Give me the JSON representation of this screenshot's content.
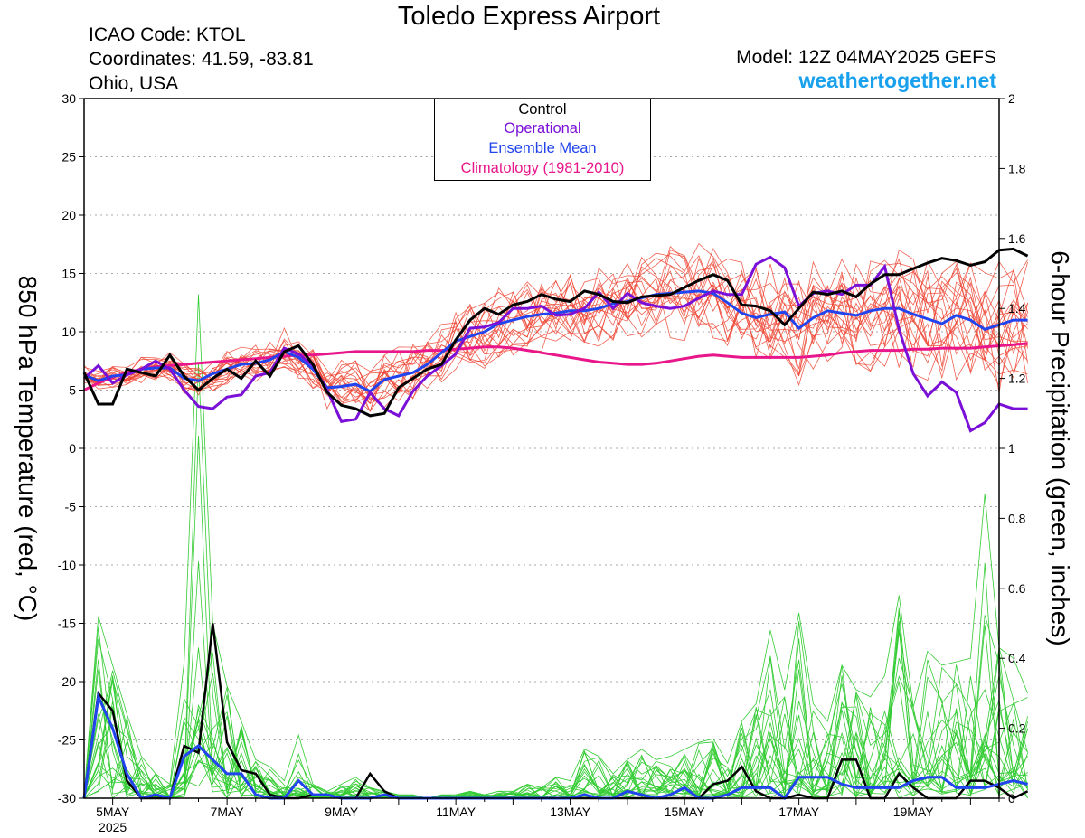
{
  "header": {
    "title": "Toledo Express Airport",
    "icao": "ICAO Code: KTOL",
    "coordinates": "Coordinates: 41.59, -83.81",
    "region": "Ohio, USA",
    "model": "Model: 12Z 04MAY2025 GEFS",
    "brand": "weathertogether.net"
  },
  "colors": {
    "control": "#000000",
    "operational": "#7a10d8",
    "ensemble_mean": "#2244ee",
    "climatology": "#e8168a",
    "temp_members": "#ee4433",
    "precip_members": "#33cc33",
    "brand": "#1aa1ee"
  },
  "chart_data": {
    "type": "line",
    "xlabel": "",
    "x_ticks": [
      "5MAY",
      "7MAY",
      "9MAY",
      "11MAY",
      "13MAY",
      "15MAY",
      "17MAY",
      "19MAY"
    ],
    "x_year_label": "2025",
    "x_range_days": [
      4.5,
      20.5
    ],
    "left_axis": {
      "label": "850 hPa Temperature (red, °C)",
      "ylim": [
        -30,
        30
      ],
      "ticks": [
        30,
        25,
        20,
        15,
        10,
        5,
        0,
        -5,
        -10,
        -15,
        -20,
        -25,
        -30
      ]
    },
    "right_axis": {
      "label": "6-hour Precipitation (green, inches)",
      "ylim": [
        0,
        2
      ],
      "ticks": [
        "2",
        "1.8",
        "1.6",
        "1.4",
        "1.2",
        "1",
        "0.8",
        "0.6",
        "0.4",
        "0.2",
        "0"
      ]
    },
    "grid": true,
    "legend": {
      "placement": "top-center",
      "entries": [
        "Control",
        "Operational",
        "Ensemble Mean",
        "Climatology (1981-2010)"
      ]
    },
    "time_step_hours": 6,
    "temperature": {
      "control": [
        6.5,
        3.8,
        3.8,
        6.8,
        6.5,
        6.2,
        8.0,
        6.2,
        5.0,
        6.0,
        6.8,
        6.0,
        7.5,
        6.2,
        8.3,
        8.8,
        7.2,
        4.8,
        3.7,
        3.4,
        2.8,
        3.0,
        5.2,
        6.0,
        6.8,
        7.2,
        9.3,
        11.0,
        12.0,
        11.5,
        12.3,
        12.6,
        13.2,
        12.8,
        12.6,
        13.5,
        13.2,
        12.6,
        12.5,
        13.0,
        13.1,
        13.2,
        13.8,
        14.4,
        14.9,
        14.4,
        12.3,
        12.2,
        11.8,
        10.6,
        12.0,
        13.4,
        13.2,
        13.5,
        13.0,
        14.1,
        14.9,
        14.9,
        15.4,
        15.9,
        16.3,
        16.1,
        15.7,
        16.0,
        17.0,
        17.1,
        16.5
      ],
      "operational": [
        6.0,
        7.1,
        5.6,
        6.3,
        6.8,
        7.5,
        6.8,
        5.0,
        3.6,
        3.4,
        4.4,
        4.6,
        6.2,
        6.5,
        8.6,
        8.1,
        7.1,
        5.0,
        2.3,
        2.5,
        4.8,
        3.4,
        2.8,
        4.9,
        6.2,
        7.1,
        8.1,
        10.3,
        10.4,
        10.8,
        12.0,
        12.0,
        12.2,
        11.4,
        11.5,
        12.0,
        13.4,
        12.0,
        13.3,
        12.5,
        12.2,
        12.0,
        12.2,
        12.9,
        13.5,
        13.2,
        13.2,
        15.8,
        16.4,
        15.5,
        12.2,
        13.3,
        13.5,
        13.2,
        14.0,
        14.0,
        15.6,
        10.2,
        6.4,
        4.5,
        5.7,
        4.8,
        1.5,
        2.2,
        3.8,
        3.4,
        3.4
      ],
      "ensemble_mean": [
        6.3,
        5.8,
        6.2,
        6.3,
        6.8,
        6.9,
        6.9,
        6.0,
        5.8,
        6.4,
        6.8,
        7.2,
        7.3,
        7.6,
        8.3,
        7.8,
        6.8,
        5.2,
        5.3,
        5.5,
        4.9,
        5.9,
        6.2,
        6.5,
        7.2,
        8.2,
        9.2,
        9.6,
        10.0,
        10.7,
        11.0,
        11.3,
        11.5,
        11.6,
        11.8,
        11.8,
        12.0,
        12.4,
        12.6,
        12.9,
        13.2,
        13.3,
        13.4,
        13.5,
        13.3,
        12.5,
        11.6,
        11.2,
        11.5,
        11.7,
        10.3,
        11.2,
        11.8,
        11.6,
        11.4,
        11.8,
        12.0,
        12.0,
        11.5,
        11.1,
        10.7,
        11.4,
        11.0,
        10.2,
        10.6,
        11.0,
        11.0
      ],
      "climatology": [
        5.0,
        5.6,
        6.1,
        6.5,
        6.8,
        7.0,
        7.1,
        7.2,
        7.3,
        7.4,
        7.5,
        7.6,
        7.7,
        7.8,
        7.9,
        8.0,
        8.0,
        8.1,
        8.2,
        8.3,
        8.3,
        8.3,
        8.3,
        8.3,
        8.4,
        8.4,
        8.5,
        8.6,
        8.7,
        8.7,
        8.6,
        8.4,
        8.2,
        8.0,
        7.8,
        7.6,
        7.4,
        7.3,
        7.2,
        7.2,
        7.3,
        7.5,
        7.7,
        7.9,
        8.0,
        7.9,
        7.8,
        7.8,
        7.8,
        7.8,
        7.8,
        7.9,
        8.0,
        8.2,
        8.3,
        8.4,
        8.4,
        8.4,
        8.5,
        8.5,
        8.6,
        8.6,
        8.6,
        8.7,
        8.8,
        8.9,
        9.0
      ]
    },
    "precipitation": {
      "control": [
        0.0,
        0.3,
        0.25,
        0.05,
        0.0,
        0.0,
        0.0,
        0.15,
        0.13,
        0.5,
        0.16,
        0.08,
        0.07,
        0.01,
        0.0,
        0.0,
        0.01,
        0.01,
        0.0,
        0.0,
        0.07,
        0.02,
        0.0,
        0.0,
        0.0,
        0.0,
        0.0,
        0.0,
        0.0,
        0.0,
        0.0,
        0.0,
        0.0,
        0.0,
        0.0,
        0.0,
        0.0,
        0.0,
        0.0,
        0.0,
        0.0,
        0.0,
        0.0,
        0.0,
        0.04,
        0.05,
        0.09,
        0.02,
        0.0,
        0.0,
        0.01,
        0.0,
        0.0,
        0.11,
        0.11,
        0.0,
        0.0,
        0.07,
        0.03,
        0.0,
        0.0,
        0.0,
        0.05,
        0.05,
        0.03,
        0.0,
        0.02
      ],
      "ensemble_mean": [
        0.0,
        0.29,
        0.2,
        0.07,
        0.0,
        0.01,
        0.0,
        0.12,
        0.15,
        0.11,
        0.07,
        0.07,
        0.01,
        0.0,
        0.0,
        0.05,
        0.01,
        0.01,
        0.0,
        0.0,
        0.0,
        0.01,
        0.0,
        0.0,
        0.0,
        0.0,
        0.0,
        0.0,
        0.0,
        0.0,
        0.0,
        0.0,
        0.0,
        0.0,
        0.0,
        0.01,
        0.0,
        0.0,
        0.02,
        0.01,
        0.0,
        0.01,
        0.03,
        0.0,
        0.0,
        0.01,
        0.03,
        0.03,
        0.03,
        0.0,
        0.06,
        0.06,
        0.06,
        0.04,
        0.03,
        0.03,
        0.03,
        0.03,
        0.05,
        0.06,
        0.06,
        0.03,
        0.03,
        0.03,
        0.04,
        0.05,
        0.04
      ],
      "member_max": [
        0.01,
        0.52,
        0.38,
        0.24,
        0.12,
        0.07,
        0.04,
        0.39,
        1.44,
        0.5,
        0.32,
        0.22,
        0.11,
        0.09,
        0.05,
        0.18,
        0.04,
        0.02,
        0.04,
        0.06,
        0.03,
        0.02,
        0.01,
        0.01,
        0.0,
        0.01,
        0.01,
        0.02,
        0.01,
        0.02,
        0.02,
        0.04,
        0.03,
        0.06,
        0.05,
        0.14,
        0.12,
        0.07,
        0.11,
        0.14,
        0.11,
        0.12,
        0.14,
        0.16,
        0.17,
        0.1,
        0.22,
        0.27,
        0.48,
        0.31,
        0.53,
        0.27,
        0.22,
        0.38,
        0.31,
        0.29,
        0.35,
        0.58,
        0.26,
        0.42,
        0.38,
        0.39,
        0.4,
        0.87,
        0.43,
        0.4,
        0.3
      ]
    }
  }
}
